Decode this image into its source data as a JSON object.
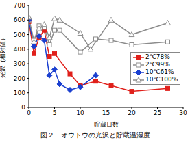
{
  "chart_data": {
    "type": "line",
    "title": "図２　オウトウの光沢と貯蔵温湿度",
    "x_label": "貯蔵日数",
    "y_label": "光沢（相対値）",
    "xlim": [
      0,
      30
    ],
    "xticks": [
      0,
      5,
      10,
      15,
      20,
      25,
      30
    ],
    "ylim": [
      0,
      700
    ],
    "yticks": [
      0,
      100,
      200,
      300,
      400,
      500,
      600,
      700
    ],
    "grid": false,
    "legend": "right",
    "series": [
      {
        "name": "2℃78%",
        "color": "#e0201b",
        "marker": "square",
        "x": [
          0,
          1,
          2,
          3,
          4,
          5,
          8,
          10,
          13,
          16,
          20,
          27
        ],
        "values": [
          590,
          370,
          480,
          530,
          350,
          370,
          230,
          150,
          180,
          150,
          110,
          130
        ]
      },
      {
        "name": "2℃99%",
        "color": "#8c8c8c",
        "marker": "open_square",
        "x": [
          0,
          1,
          2,
          3,
          4,
          5,
          6,
          10,
          13,
          16,
          20,
          27
        ],
        "values": [
          600,
          460,
          560,
          550,
          430,
          530,
          530,
          380,
          470,
          460,
          430,
          450
        ]
      },
      {
        "name": "10℃61%",
        "color": "#1a3fd0",
        "marker": "diamond",
        "x": [
          0,
          1,
          2,
          3,
          4,
          5,
          6,
          8,
          10,
          13
        ],
        "values": [
          600,
          420,
          490,
          460,
          220,
          260,
          160,
          120,
          140,
          220
        ]
      },
      {
        "name": "10℃100%",
        "color": "#8c8c8c",
        "marker": "open_triangle",
        "x": [
          0,
          1,
          2,
          3,
          4,
          5,
          6,
          10,
          12,
          16,
          20,
          27
        ],
        "values": [
          620,
          450,
          540,
          570,
          480,
          610,
          600,
          510,
          400,
          600,
          500,
          580
        ]
      }
    ]
  }
}
